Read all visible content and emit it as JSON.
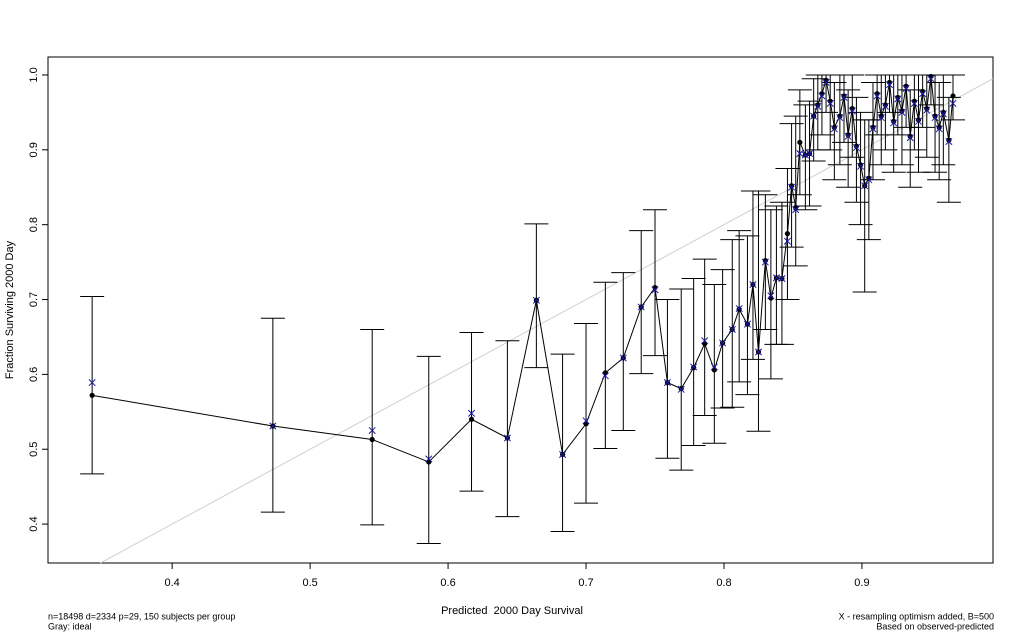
{
  "chart_data": {
    "type": "calibration",
    "xlabel": "Predicted  2000 Day Survival",
    "ylabel": "Fraction Surviving 2000 Day",
    "footnote_left": [
      "n=18498 d=2334 p=29, 150 subjects per group",
      "Gray: ideal"
    ],
    "footnote_right": [
      "X - resampling optimism added, B=500",
      "Based on observed-predicted"
    ],
    "xlim": [
      0.31,
      0.995
    ],
    "ylim": [
      0.348,
      1.024
    ],
    "xticks": [
      0.4,
      0.5,
      0.6,
      0.7,
      0.8,
      0.9
    ],
    "yticks": [
      0.4,
      0.5,
      0.6,
      0.7,
      0.8,
      0.9,
      {
        "value": 1,
        "label": "1.0"
      }
    ],
    "observed_color": "#000000",
    "corrected_color": "#1a1aa8",
    "ideal_color": "#d0d0d0",
    "ideal_line": true,
    "x": [
      0.342,
      0.473,
      0.545,
      0.586,
      0.617,
      0.643,
      0.664,
      0.683,
      0.7,
      0.714,
      0.727,
      0.74,
      0.75,
      0.759,
      0.769,
      0.778,
      0.786,
      0.793,
      0.799,
      0.806,
      0.811,
      0.817,
      0.821,
      0.825,
      0.83,
      0.834,
      0.838,
      0.842,
      0.846,
      0.849,
      0.852,
      0.855,
      0.859,
      0.862,
      0.865,
      0.868,
      0.871,
      0.874,
      0.877,
      0.88,
      0.884,
      0.887,
      0.89,
      0.893,
      0.896,
      0.899,
      0.902,
      0.905,
      0.908,
      0.911,
      0.914,
      0.917,
      0.92,
      0.923,
      0.926,
      0.929,
      0.932,
      0.935,
      0.938,
      0.941,
      0.944,
      0.947,
      0.95,
      0.953,
      0.956,
      0.959,
      0.963,
      0.966
    ],
    "observed": [
      0.572,
      0.531,
      0.513,
      0.483,
      0.54,
      0.515,
      0.699,
      0.493,
      0.534,
      0.602,
      0.622,
      0.69,
      0.716,
      0.589,
      0.581,
      0.609,
      0.641,
      0.606,
      0.642,
      0.66,
      0.687,
      0.667,
      0.72,
      0.63,
      0.752,
      0.702,
      0.729,
      0.728,
      0.788,
      0.852,
      0.823,
      0.91,
      0.893,
      0.895,
      0.945,
      0.96,
      0.975,
      0.993,
      0.965,
      0.93,
      0.945,
      0.972,
      0.92,
      0.955,
      0.905,
      0.88,
      0.852,
      0.862,
      0.93,
      0.975,
      0.945,
      0.96,
      0.99,
      0.938,
      0.97,
      0.952,
      0.985,
      0.918,
      0.965,
      0.94,
      0.978,
      0.955,
      0.998,
      0.945,
      0.93,
      0.95,
      0.913,
      0.972
    ],
    "lower": [
      0.467,
      0.416,
      0.399,
      0.374,
      0.444,
      0.41,
      0.609,
      0.39,
      0.428,
      0.501,
      0.525,
      0.601,
      0.625,
      0.488,
      0.472,
      0.505,
      0.545,
      0.508,
      0.555,
      0.556,
      0.59,
      0.573,
      0.62,
      0.524,
      0.66,
      0.594,
      0.64,
      0.64,
      0.7,
      0.77,
      0.745,
      0.84,
      0.82,
      0.825,
      0.885,
      0.9,
      0.92,
      0.95,
      0.9,
      0.86,
      0.88,
      0.91,
      0.85,
      0.89,
      0.83,
      0.8,
      0.71,
      0.78,
      0.86,
      0.92,
      0.88,
      0.9,
      0.95,
      0.87,
      0.92,
      0.88,
      0.93,
      0.85,
      0.9,
      0.87,
      0.93,
      0.89,
      0.96,
      0.87,
      0.86,
      0.88,
      0.83,
      0.94
    ],
    "upper": [
      0.704,
      0.675,
      0.66,
      0.624,
      0.656,
      0.645,
      0.801,
      0.627,
      0.668,
      0.723,
      0.736,
      0.792,
      0.82,
      0.7,
      0.714,
      0.728,
      0.754,
      0.72,
      0.74,
      0.78,
      0.792,
      0.785,
      0.845,
      0.845,
      0.84,
      0.82,
      0.825,
      0.83,
      0.875,
      0.935,
      0.945,
      0.98,
      0.96,
      0.965,
      0.995,
      1.0,
      1.0,
      1.0,
      1.0,
      0.99,
      1.0,
      1.0,
      0.98,
      1.0,
      0.97,
      0.95,
      0.94,
      0.94,
      0.99,
      1.0,
      1.0,
      1.0,
      1.0,
      1.0,
      1.0,
      1.0,
      1.0,
      0.98,
      1.0,
      1.0,
      1.0,
      1.0,
      1.0,
      1.0,
      0.99,
      1.0,
      0.97,
      1.0
    ],
    "corrected": [
      0.589,
      0.531,
      0.525,
      0.487,
      0.548,
      0.515,
      0.699,
      0.493,
      0.538,
      0.598,
      0.622,
      0.69,
      0.713,
      0.589,
      0.58,
      0.61,
      0.645,
      0.61,
      0.642,
      0.66,
      0.688,
      0.667,
      0.72,
      0.63,
      0.75,
      0.705,
      0.729,
      0.728,
      0.778,
      0.85,
      0.82,
      0.895,
      0.893,
      0.895,
      0.945,
      0.958,
      0.972,
      0.99,
      0.962,
      0.928,
      0.943,
      0.97,
      0.918,
      0.952,
      0.903,
      0.878,
      0.852,
      0.86,
      0.928,
      0.972,
      0.943,
      0.958,
      0.987,
      0.936,
      0.968,
      0.95,
      0.982,
      0.916,
      0.962,
      0.938,
      0.975,
      0.953,
      0.995,
      0.943,
      0.928,
      0.948,
      0.911,
      0.962
    ]
  }
}
